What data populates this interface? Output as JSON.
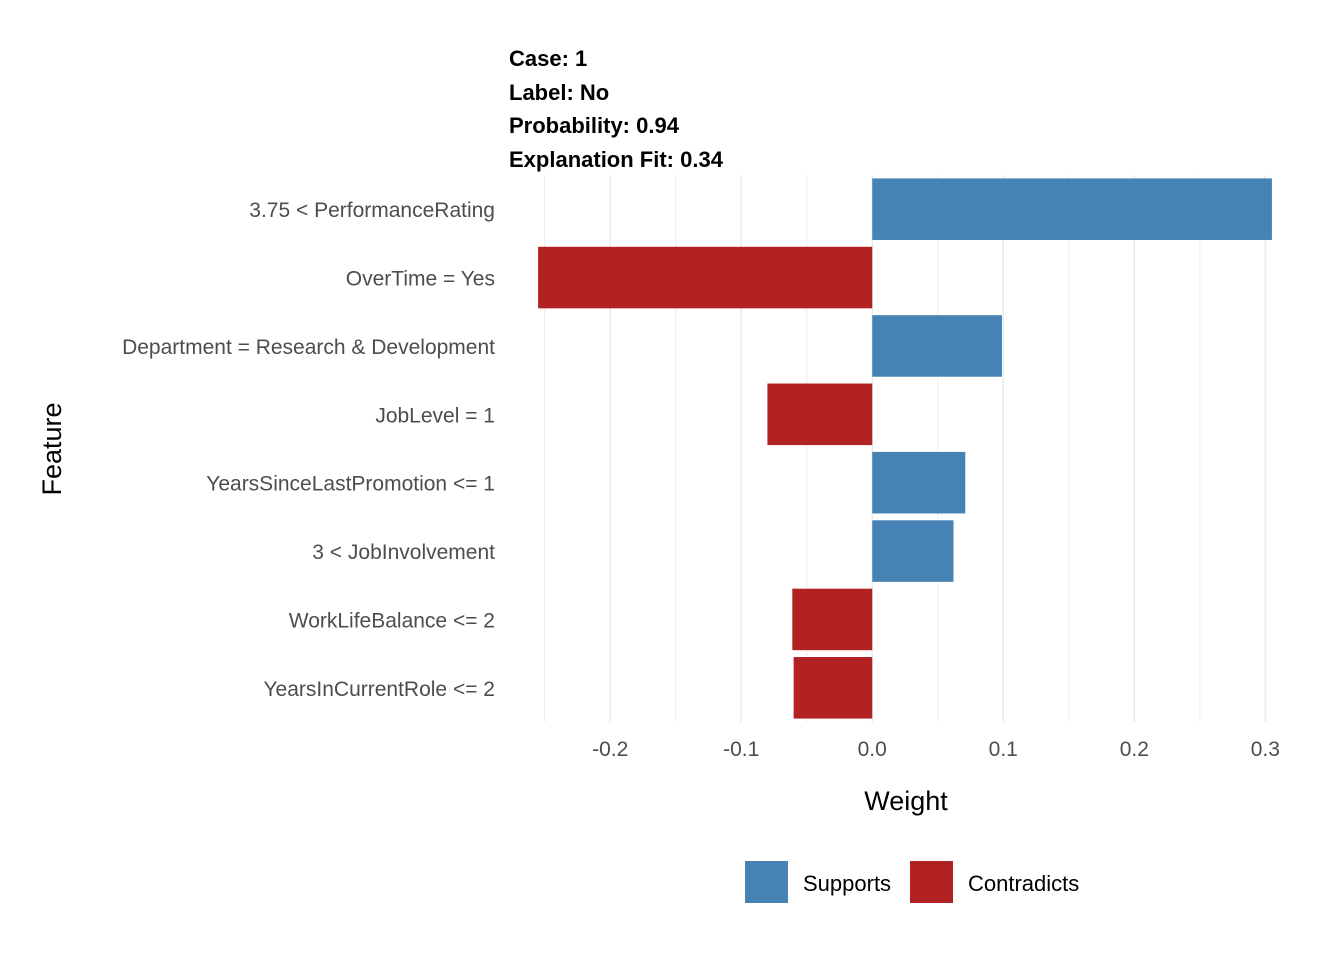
{
  "header": {
    "case": "Case: 1",
    "label": "Label: No",
    "probability": "Probability: 0.94",
    "fit": "Explanation Fit: 0.34"
  },
  "colors": {
    "supports": "#4682B4",
    "contradicts": "#B22222",
    "grid": "#EBEBEB"
  },
  "chart_data": {
    "type": "bar",
    "orientation": "horizontal",
    "title": "",
    "xlabel": "Weight",
    "ylabel": "Feature",
    "xlim": [
      -0.265,
      0.315
    ],
    "x_ticks": [
      -0.2,
      -0.1,
      0.0,
      0.1,
      0.2,
      0.3
    ],
    "x_tick_labels": [
      "-0.2",
      "-0.1",
      "0.0",
      "0.1",
      "0.2",
      "0.3"
    ],
    "grid": true,
    "legend_position": "bottom",
    "categories": [
      "3.75 < PerformanceRating",
      "OverTime = Yes",
      "Department = Research & Development",
      "JobLevel = 1",
      "YearsSinceLastPromotion <= 1",
      "3 < JobInvolvement",
      "WorkLifeBalance <= 2",
      "YearsInCurrentRole <= 2"
    ],
    "values": [
      0.305,
      -0.255,
      0.099,
      -0.08,
      0.071,
      0.062,
      -0.061,
      -0.06
    ],
    "legend": [
      {
        "name": "Supports",
        "color": "#4682B4"
      },
      {
        "name": "Contradicts",
        "color": "#B22222"
      }
    ]
  }
}
